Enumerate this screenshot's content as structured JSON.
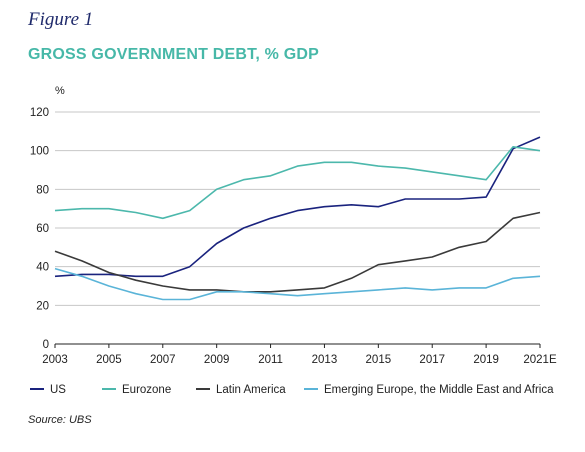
{
  "figure_label": "Figure 1",
  "source_text": "Source: UBS",
  "colors": {
    "title": "#47b8a8",
    "figure_label": "#1f2a6b",
    "grid": "#c7c7c7",
    "axis": "#222222"
  },
  "chart_data": {
    "type": "line",
    "title": "GROSS GOVERNMENT DEBT, % GDP",
    "ylabel": "%",
    "xlabel": "",
    "ylim": [
      0,
      120
    ],
    "yticks": [
      0,
      20,
      40,
      60,
      80,
      100,
      120
    ],
    "x": [
      2003,
      2004,
      2005,
      2006,
      2007,
      2008,
      2009,
      2010,
      2011,
      2012,
      2013,
      2014,
      2015,
      2016,
      2017,
      2018,
      2019,
      2020,
      2021
    ],
    "xtick_labels": [
      "2003",
      "2005",
      "2007",
      "2009",
      "2011",
      "2013",
      "2015",
      "2017",
      "2019",
      "2021E"
    ],
    "xtick_values": [
      2003,
      2005,
      2007,
      2009,
      2011,
      2013,
      2015,
      2017,
      2019,
      2021
    ],
    "grid": "horizontal",
    "legend_position": "bottom",
    "series": [
      {
        "name": "US",
        "color": "#1a237e",
        "values": [
          35,
          36,
          36,
          35,
          35,
          40,
          52,
          60,
          65,
          69,
          71,
          72,
          71,
          75,
          75,
          75,
          76,
          101,
          107
        ]
      },
      {
        "name": "Eurozone",
        "color": "#4cb8ac",
        "values": [
          69,
          70,
          70,
          68,
          65,
          69,
          80,
          85,
          87,
          92,
          94,
          94,
          92,
          91,
          89,
          87,
          85,
          102,
          100
        ]
      },
      {
        "name": "Latin America",
        "color": "#3a3a3a",
        "values": [
          48,
          43,
          37,
          33,
          30,
          28,
          28,
          27,
          27,
          28,
          29,
          34,
          41,
          43,
          45,
          50,
          53,
          65,
          68
        ]
      },
      {
        "name": "Emerging Europe, the Middle East and Africa",
        "color": "#5ab4d8",
        "values": [
          39,
          35,
          30,
          26,
          23,
          23,
          27,
          27,
          26,
          25,
          26,
          27,
          28,
          29,
          28,
          29,
          29,
          34,
          35
        ]
      }
    ]
  }
}
